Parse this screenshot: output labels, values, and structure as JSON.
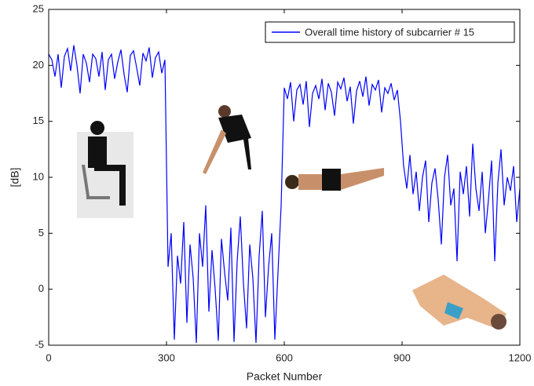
{
  "chart_data": {
    "type": "line",
    "xlabel": "Packet Number",
    "ylabel": "[dB]",
    "x": [
      0,
      8,
      16,
      24,
      32,
      40,
      48,
      56,
      64,
      72,
      80,
      88,
      96,
      104,
      112,
      120,
      128,
      136,
      144,
      152,
      160,
      168,
      176,
      184,
      192,
      200,
      208,
      216,
      224,
      232,
      240,
      248,
      256,
      264,
      272,
      280,
      288,
      296,
      304,
      312,
      320,
      328,
      336,
      344,
      352,
      360,
      368,
      376,
      384,
      392,
      400,
      408,
      416,
      424,
      432,
      440,
      448,
      456,
      464,
      472,
      480,
      488,
      496,
      504,
      512,
      520,
      528,
      536,
      544,
      552,
      560,
      568,
      576,
      584,
      592,
      600,
      608,
      616,
      624,
      632,
      640,
      648,
      656,
      664,
      672,
      680,
      688,
      696,
      704,
      712,
      720,
      728,
      736,
      744,
      752,
      760,
      768,
      776,
      784,
      792,
      800,
      808,
      816,
      824,
      832,
      840,
      848,
      856,
      864,
      872,
      880,
      888,
      896,
      904,
      912,
      920,
      928,
      936,
      944,
      952,
      960,
      968,
      976,
      984,
      992,
      1000,
      1008,
      1016,
      1024,
      1032,
      1040,
      1048,
      1056,
      1064,
      1072,
      1080,
      1088,
      1096,
      1104,
      1112,
      1120,
      1128,
      1136,
      1144,
      1152,
      1160,
      1168,
      1176,
      1184,
      1192,
      1200
    ],
    "series": [
      {
        "name": "Overall time history of subcarrier # 15",
        "color": "#0000ff",
        "values": [
          21,
          20.5,
          19,
          21,
          18,
          20.8,
          21.5,
          19.5,
          21.8,
          20,
          17.5,
          21,
          20.2,
          18.5,
          21,
          20.6,
          19,
          21.2,
          17.8,
          20.5,
          21,
          18.8,
          20.3,
          21.4,
          19.2,
          17.6,
          20.9,
          21.3,
          19.8,
          18.2,
          21.1,
          20.4,
          21.6,
          18.9,
          20.7,
          21.2,
          19.3,
          20.5,
          2,
          5,
          -4.5,
          3,
          0.5,
          6,
          -3,
          4,
          1,
          -4.8,
          5,
          2,
          7.5,
          -2,
          3.5,
          0,
          -4.6,
          4.5,
          1.5,
          -1,
          5.5,
          -4.7,
          2.5,
          6.5,
          0.5,
          -3.5,
          4,
          1,
          -4.8,
          3,
          7,
          -2.5,
          2,
          5,
          -4.5,
          1.5,
          7.5,
          18,
          17,
          18.5,
          15,
          17.8,
          18.3,
          16.5,
          18.6,
          14.5,
          17.5,
          18.2,
          17,
          18.8,
          16,
          18.4,
          17.6,
          15.5,
          18.5,
          17.9,
          18.9,
          16.8,
          18.1,
          14.8,
          17.7,
          18.6,
          17.2,
          19,
          16.4,
          18.3,
          17.8,
          18.7,
          15.8,
          18,
          17.5,
          18.4,
          16.9,
          17.8,
          15,
          11,
          9,
          12,
          8.5,
          10.5,
          7,
          10,
          11.5,
          6,
          9.5,
          10.8,
          8,
          4,
          10,
          12,
          7.5,
          9,
          2.5,
          10.5,
          8.5,
          11,
          6.5,
          13,
          9,
          7,
          10.5,
          5,
          8,
          11.5,
          2.5,
          9.5,
          12.5,
          7.5,
          10,
          8.8,
          11,
          6,
          9
        ]
      }
    ],
    "xlim": [
      0,
      1200
    ],
    "xticks": [
      0,
      300,
      600,
      900,
      1200
    ],
    "ylim": [
      -5,
      25
    ],
    "yticks": [
      -5,
      0,
      5,
      10,
      15,
      20,
      25
    ],
    "legend": "upper right"
  }
}
